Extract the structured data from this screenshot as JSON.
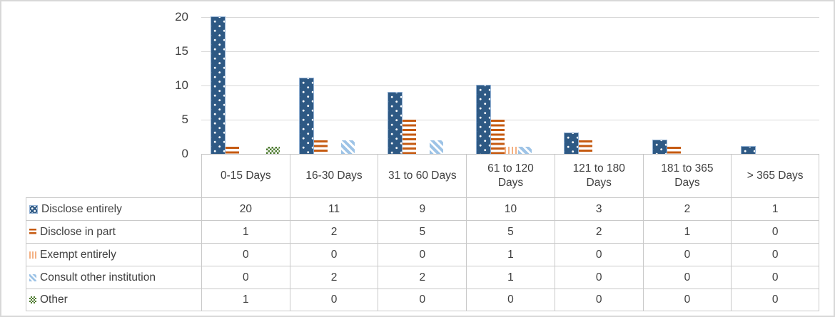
{
  "chart_data": {
    "type": "bar",
    "title": "",
    "xlabel": "",
    "ylabel": "",
    "categories": [
      "0-15 Days",
      "16-30 Days",
      "31 to 60 Days",
      "61 to 120\nDays",
      "121 to 180\nDays",
      "181 to 365\nDays",
      "> 365 Days"
    ],
    "series": [
      {
        "name": "Disclose entirely",
        "pattern": "dots",
        "color": "#2E5984",
        "values": [
          20,
          11,
          9,
          10,
          3,
          2,
          1
        ]
      },
      {
        "name": "Disclose in part",
        "pattern": "hstripes",
        "color": "#C55A11",
        "values": [
          1,
          2,
          5,
          5,
          2,
          1,
          0
        ]
      },
      {
        "name": "Exempt entirely",
        "pattern": "vstripes",
        "color": "#F4B183",
        "values": [
          0,
          0,
          0,
          1,
          0,
          0,
          0
        ]
      },
      {
        "name": "Consult other institution",
        "pattern": "diag",
        "color": "#9DC3E6",
        "values": [
          0,
          2,
          2,
          1,
          0,
          0,
          0
        ]
      },
      {
        "name": "Other",
        "pattern": "checker",
        "color": "#4E7B30",
        "values": [
          1,
          0,
          0,
          0,
          0,
          0,
          0
        ]
      }
    ],
    "y_ticks": [
      0,
      5,
      10,
      15,
      20
    ],
    "ylim": [
      0,
      20
    ],
    "grid": true,
    "legend_position": "data-table-left-column"
  },
  "colors": {
    "gridline": "#D9D9D9",
    "axis_line": "#C2C2C2",
    "table_border": "#C9C9C9",
    "text": "#404040",
    "frame_border": "#D8D8D8",
    "background": "#FFFFFF"
  }
}
